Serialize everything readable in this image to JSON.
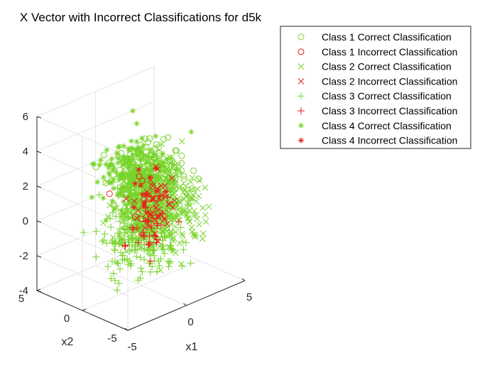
{
  "chart_data": {
    "type": "scatter",
    "title": "X Vector with Incorrect Classifications for d5k",
    "xlabel": "x1",
    "ylabel": "x2",
    "zlabel": "",
    "x_ticks": [
      "-5",
      "0",
      "5"
    ],
    "y_ticks": [
      "-5",
      "0",
      "5"
    ],
    "z_ticks": [
      "6",
      "4",
      "2",
      "0",
      "-2",
      "-4"
    ],
    "xlim": [
      -5,
      5
    ],
    "ylim": [
      -5,
      5
    ],
    "zlim": [
      -4,
      6
    ],
    "grid": true,
    "legend_position": "top-right",
    "colors": {
      "correct": "#77d42a",
      "incorrect": "#e8201c"
    },
    "series": [
      {
        "name": "Class 1 Correct Classification",
        "marker": "circle",
        "color": "#77d42a",
        "center": [
          0.5,
          -0.5,
          2.2
        ],
        "spread": [
          1.2,
          1.2,
          0.9
        ],
        "count": 260
      },
      {
        "name": "Class 1 Incorrect Classification",
        "marker": "circle",
        "color": "#e8201c",
        "center": [
          0.6,
          -0.2,
          0.8
        ],
        "spread": [
          0.9,
          0.9,
          0.8
        ],
        "count": 12
      },
      {
        "name": "Class 2 Correct Classification",
        "marker": "x",
        "color": "#77d42a",
        "center": [
          2.5,
          1.0,
          -0.5
        ],
        "spread": [
          1.4,
          1.4,
          1.1
        ],
        "count": 300
      },
      {
        "name": "Class 2 Incorrect Classification",
        "marker": "x",
        "color": "#e8201c",
        "center": [
          1.3,
          0.3,
          0.2
        ],
        "spread": [
          0.9,
          0.9,
          0.8
        ],
        "count": 45
      },
      {
        "name": "Class 3 Correct Classification",
        "marker": "plus",
        "color": "#77d42a",
        "center": [
          -1.5,
          -2.0,
          0.0
        ],
        "spread": [
          1.4,
          1.4,
          1.1
        ],
        "count": 300
      },
      {
        "name": "Class 3 Incorrect Classification",
        "marker": "plus",
        "color": "#e8201c",
        "center": [
          0.0,
          -0.8,
          -0.6
        ],
        "spread": [
          0.8,
          0.8,
          0.8
        ],
        "count": 35
      },
      {
        "name": "Class 4 Correct Classification",
        "marker": "asterisk",
        "color": "#77d42a",
        "center": [
          0.0,
          0.5,
          2.3
        ],
        "spread": [
          1.1,
          1.1,
          0.9
        ],
        "count": 230
      },
      {
        "name": "Class 4 Incorrect Classification",
        "marker": "asterisk",
        "color": "#e8201c",
        "center": [
          0.3,
          0.0,
          1.2
        ],
        "spread": [
          0.8,
          0.8,
          0.8
        ],
        "count": 15
      }
    ]
  }
}
